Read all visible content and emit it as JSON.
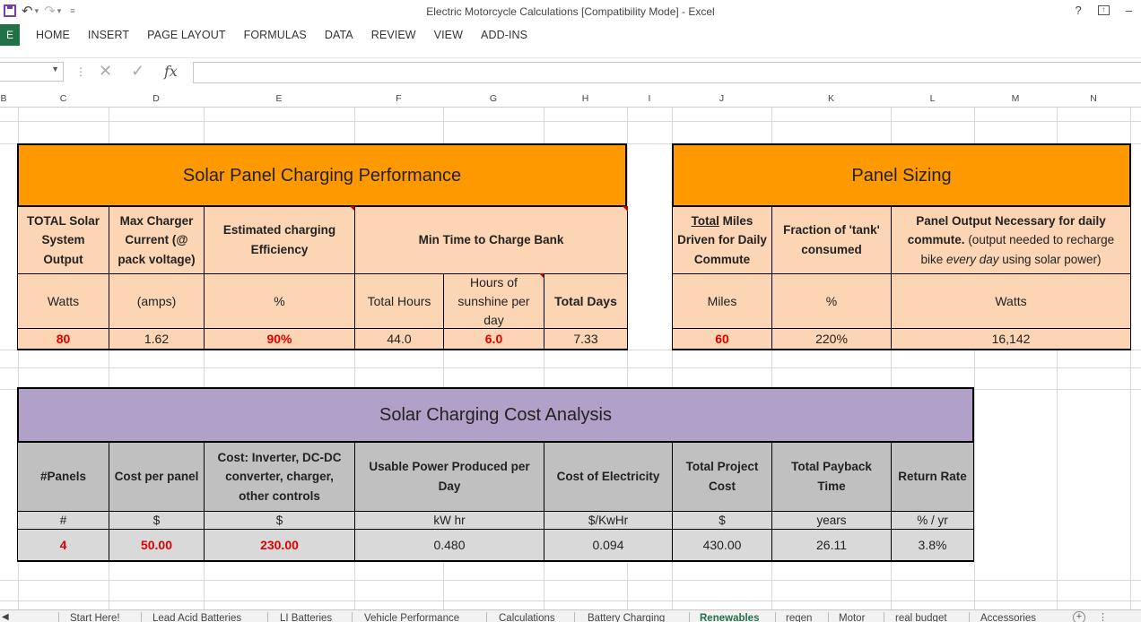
{
  "window": {
    "title": "Electric Motorcycle Calculations  [Compatibility Mode] - Excel",
    "help": "?",
    "minimize": "–"
  },
  "ribbon": {
    "file_label": "E",
    "tabs": [
      "HOME",
      "INSERT",
      "PAGE LAYOUT",
      "FORMULAS",
      "DATA",
      "REVIEW",
      "VIEW",
      "ADD-INS"
    ]
  },
  "formula_bar": {
    "name_box": "",
    "formula": "",
    "fx_label": "fx"
  },
  "columns": [
    "B",
    "C",
    "D",
    "E",
    "F",
    "G",
    "H",
    "I",
    "J",
    "K",
    "L",
    "M",
    "N"
  ],
  "solar_panel": {
    "title": "Solar Panel Charging Performance",
    "headers": {
      "total_solar": "TOTAL Solar System Output",
      "max_charger": "Max Charger Current (@ pack voltage)",
      "efficiency": "Estimated charging Efficiency",
      "min_time": "Min Time to Charge Bank"
    },
    "units": {
      "watts": "Watts",
      "amps": "(amps)",
      "percent": "%",
      "total_hours": "Total Hours",
      "sunshine": "Hours of sunshine per day",
      "total_days": "Total Days"
    },
    "values": {
      "total_solar": "80",
      "max_charger": "1.62",
      "efficiency": "90%",
      "total_hours": "44.0",
      "sunshine": "6.0",
      "total_days": "7.33"
    }
  },
  "panel_sizing": {
    "title": "Panel Sizing",
    "headers": {
      "miles_total": "Total",
      "miles_rest": " Miles Driven for Daily Commute",
      "fraction": "Fraction of 'tank' consumed",
      "output_bold": "Panel Output Necessary for daily commute.",
      "output_normal": " (output needed to recharge bike ",
      "output_italic": "every day",
      "output_end": "  using solar power)"
    },
    "units": {
      "miles": "Miles",
      "percent": "%",
      "watts": "Watts"
    },
    "values": {
      "miles": "60",
      "fraction": "220%",
      "output": "16,142"
    }
  },
  "cost_analysis": {
    "title": "Solar Charging Cost Analysis",
    "headers": [
      "#Panels",
      "Cost per panel",
      "Cost: Inverter, DC-DC converter, charger, other controls",
      "Usable Power Produced per Day",
      "Cost of Electricity",
      "Total Project Cost",
      "Total Payback Time",
      "Return Rate"
    ],
    "units": [
      "#",
      "$",
      "$",
      "kW hr",
      "$/KwHr",
      "$",
      "years",
      "% / yr"
    ],
    "values": [
      "4",
      "50.00",
      "230.00",
      "0.480",
      "0.094",
      "430.00",
      "26.11",
      "3.8%"
    ],
    "red_inputs": [
      true,
      true,
      true,
      false,
      false,
      false,
      false,
      false
    ]
  },
  "sheet_tabs": [
    "Start Here!",
    "Lead Acid Batteries",
    "LI Batteries",
    "Vehicle Performance",
    "Calculations",
    "Battery Charging",
    "Renewables",
    "regen",
    "Motor",
    "real budget",
    "Accessories"
  ],
  "active_sheet": "Renewables",
  "colors": {
    "orange_header": "#ff9900",
    "peach_cells": "#fcd5b4",
    "purple_header": "#b1a0c7",
    "gray_cells": "#c0c0c0",
    "light_gray_units": "#d9d9d9",
    "input_red": "#e00000",
    "excel_green": "#217346"
  }
}
